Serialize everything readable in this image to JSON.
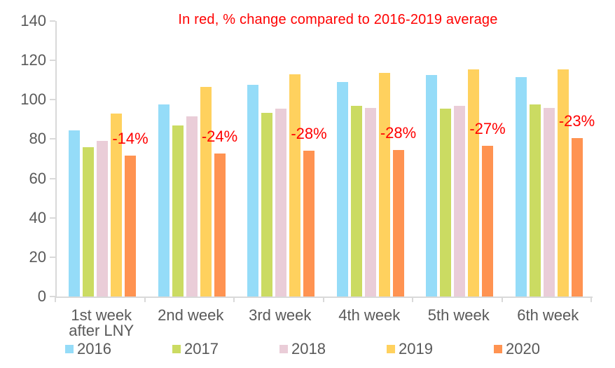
{
  "chart_data": {
    "type": "bar",
    "title": "In red, % change compared to 2016-2019 average",
    "title_color": "#ff0000",
    "categories": [
      [
        "1st week",
        "after LNY"
      ],
      [
        "2nd week"
      ],
      [
        "3rd week"
      ],
      [
        "4th week"
      ],
      [
        "5th week"
      ],
      [
        "6th week"
      ]
    ],
    "series": [
      {
        "name": "2016",
        "color": "#95DCF8",
        "values": [
          84.5,
          97.5,
          107.5,
          109,
          112.5,
          111.5
        ]
      },
      {
        "name": "2017",
        "color": "#CBDB62",
        "values": [
          76,
          87,
          93.5,
          97,
          95.5,
          97.5
        ]
      },
      {
        "name": "2018",
        "color": "#EACDD8",
        "values": [
          79,
          91.5,
          95.5,
          96,
          97,
          96
        ]
      },
      {
        "name": "2019",
        "color": "#FFD15E",
        "values": [
          93,
          106.5,
          113,
          113.5,
          115.5,
          115.5
        ]
      },
      {
        "name": "2020",
        "color": "#FF9351",
        "values": [
          71.5,
          72.5,
          74,
          74.5,
          76.5,
          80.5
        ]
      }
    ],
    "annotations": {
      "series": "2020",
      "labels": [
        "-14%",
        "-24%",
        "-28%",
        "-28%",
        "-27%",
        "-23%"
      ],
      "color": "#ff0000"
    },
    "y_axis": {
      "min": 0,
      "max": 140,
      "step": 20,
      "tick_labels": [
        "0",
        "20",
        "40",
        "60",
        "80",
        "100",
        "120",
        "140"
      ]
    },
    "legend_position": "bottom",
    "grid": false,
    "axis_color": "#d9d9d9",
    "text_color": "#595959"
  }
}
